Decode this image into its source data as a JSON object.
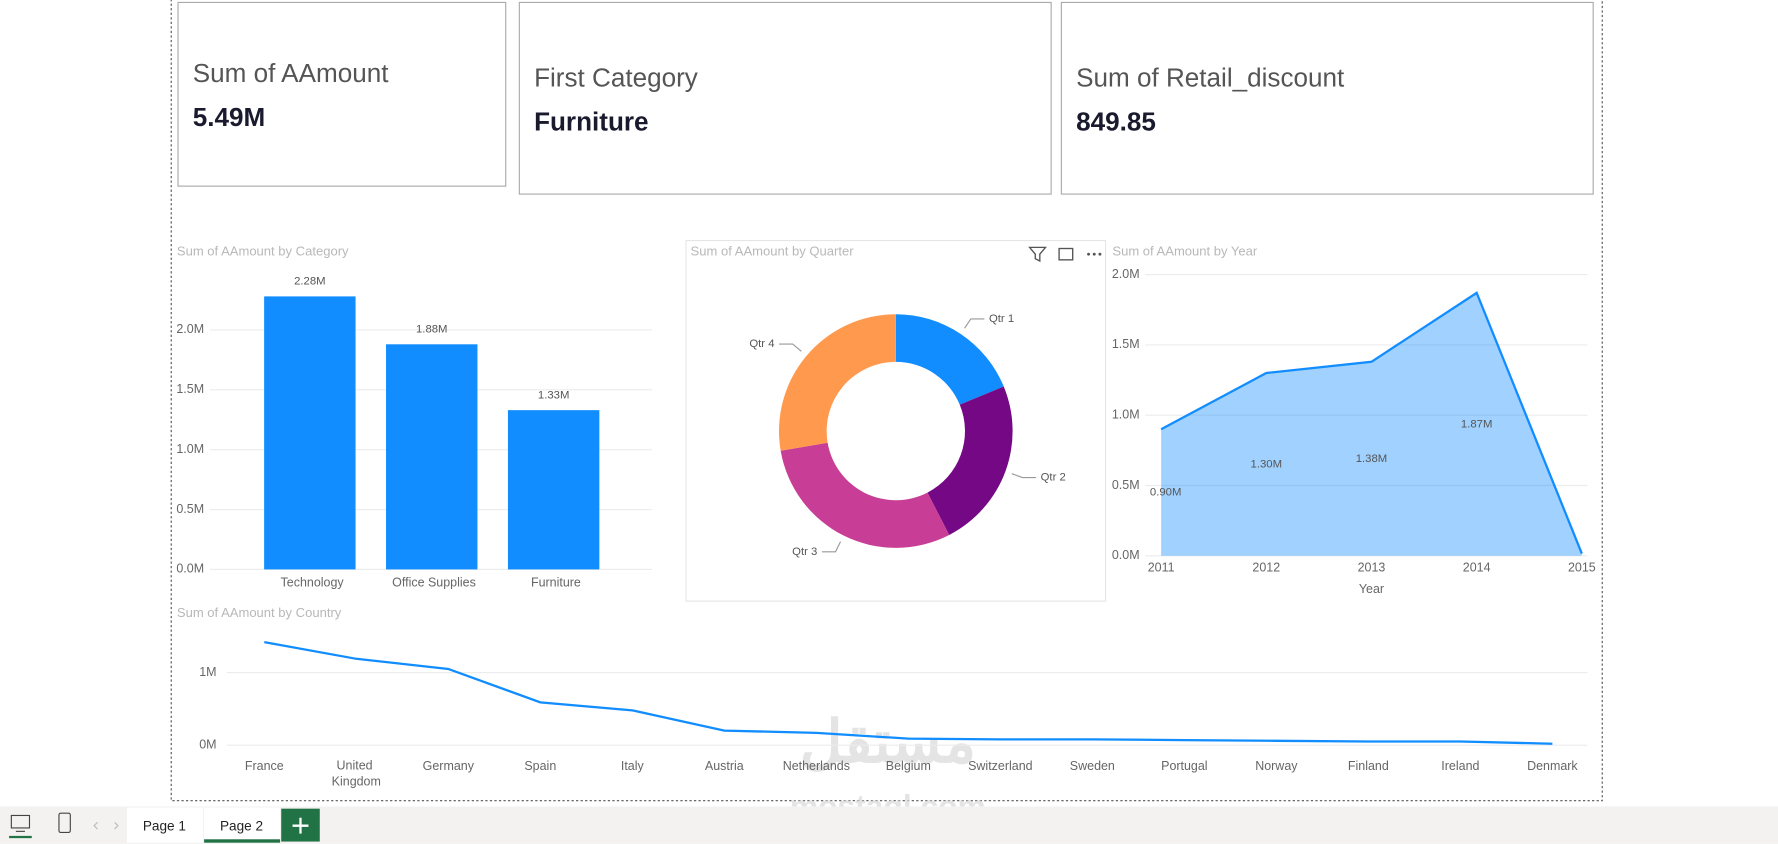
{
  "cards": [
    {
      "title": "Sum of AAmount",
      "value": "5.49M"
    },
    {
      "title": "First Category",
      "value": "Furniture"
    },
    {
      "title": "Sum of Retail_discount",
      "value": "849.85"
    }
  ],
  "tabs": [
    "Page 1",
    "Page 2"
  ],
  "watermark": {
    "arabic": "مستقل",
    "latin": "mostaql.com"
  },
  "chart_data": [
    {
      "type": "bar",
      "title": "Sum of AAmount by Category",
      "categories": [
        "Technology",
        "Office Supplies",
        "Furniture"
      ],
      "values": [
        2280000,
        1880000,
        1330000
      ],
      "value_labels": [
        "2.28M",
        "1.88M",
        "1.33M"
      ],
      "color": "#118DFF",
      "grid": true,
      "ylim": [
        0,
        2500000
      ],
      "yticks": [
        {
          "value": 0,
          "label": "0.0M"
        },
        {
          "value": 500000,
          "label": "0.5M"
        },
        {
          "value": 1000000,
          "label": "1.0M"
        },
        {
          "value": 1500000,
          "label": "1.5M"
        },
        {
          "value": 2000000,
          "label": "2.0M"
        }
      ]
    },
    {
      "type": "pie",
      "title": "Sum of AAmount by Quarter",
      "donut": true,
      "categories": [
        "Qtr 1",
        "Qtr 2",
        "Qtr 3",
        "Qtr 4"
      ],
      "values": [
        1030000,
        1300000,
        1640000,
        1520000
      ],
      "colors": [
        "#118DFF",
        "#750985",
        "#C83D95",
        "#FF994E"
      ]
    },
    {
      "type": "area",
      "title": "Sum of AAmount by Year",
      "xlabel": "Year",
      "x": [
        2011,
        2012,
        2013,
        2014,
        2015
      ],
      "values": [
        900000,
        1300000,
        1380000,
        1870000,
        16000
      ],
      "value_labels": [
        "0.90M",
        "1.30M",
        "1.38M",
        "1.87M",
        null
      ],
      "color": "#118DFF",
      "grid": true,
      "xlim": [
        2011,
        2015
      ],
      "xticks": [
        2011,
        2012,
        2013,
        2014,
        2015
      ],
      "ylim": [
        0,
        2000000
      ],
      "yticks": [
        {
          "value": 0,
          "label": "0.0M"
        },
        {
          "value": 500000,
          "label": "0.5M"
        },
        {
          "value": 1000000,
          "label": "1.0M"
        },
        {
          "value": 1500000,
          "label": "1.5M"
        },
        {
          "value": 2000000,
          "label": "2.0M"
        }
      ]
    },
    {
      "type": "line",
      "title": "Sum of AAmount by Country",
      "categories": [
        "France",
        "United Kingdom",
        "Germany",
        "Spain",
        "Italy",
        "Austria",
        "Netherlands",
        "Belgium",
        "Switzerland",
        "Sweden",
        "Portugal",
        "Norway",
        "Finland",
        "Ireland",
        "Denmark"
      ],
      "values": [
        1420000,
        1190000,
        1050000,
        590000,
        480000,
        200000,
        170000,
        90000,
        80000,
        80000,
        70000,
        60000,
        50000,
        50000,
        20000
      ],
      "color": "#118DFF",
      "grid": true,
      "ylim": [
        0,
        1500000
      ],
      "yticks": [
        {
          "value": 0,
          "label": "0M"
        },
        {
          "value": 1000000,
          "label": "1M"
        }
      ]
    }
  ]
}
